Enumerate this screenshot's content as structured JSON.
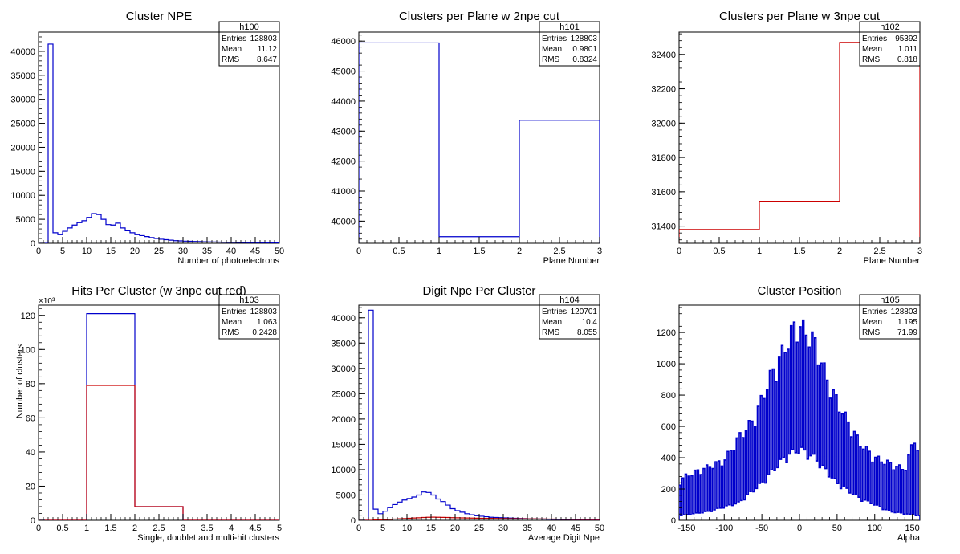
{
  "chart_data": [
    {
      "type": "histogram",
      "title": "Cluster NPE",
      "xlabel": "Number of photoelectrons",
      "ylabel": "",
      "xlim": [
        0,
        50
      ],
      "ylim": [
        0,
        44000
      ],
      "x_ticks": [
        "0",
        "5",
        "10",
        "15",
        "20",
        "25",
        "30",
        "35",
        "40",
        "45",
        "50"
      ],
      "y_ticks": [
        "0",
        "5000",
        "10000",
        "15000",
        "20000",
        "25000",
        "30000",
        "35000",
        "40000"
      ],
      "y_exponent": "",
      "stats": {
        "name": "h100",
        "entries": "128803",
        "mean": "11.12",
        "rms": "8.647"
      },
      "series": [
        {
          "color": "#0000cc",
          "bin_edges": [
            0,
            50
          ],
          "values": [
            0,
            0,
            41500,
            2200,
            1800,
            2500,
            3200,
            3800,
            4300,
            4700,
            5400,
            6200,
            6000,
            5000,
            3900,
            3800,
            4200,
            3200,
            2600,
            2200,
            1800,
            1600,
            1400,
            1200,
            1000,
            850,
            750,
            650,
            550,
            500,
            450,
            420,
            380,
            350,
            320,
            300,
            270,
            250,
            230,
            210,
            200,
            180,
            160,
            150,
            140,
            130,
            120,
            110,
            100,
            90
          ]
        }
      ]
    },
    {
      "type": "histogram",
      "title": "Clusters per Plane w 2npe cut",
      "xlabel": "Plane Number",
      "ylabel": "",
      "xlim": [
        0,
        3
      ],
      "ylim": [
        39260,
        46300
      ],
      "x_ticks": [
        "0",
        "0.5",
        "1",
        "1.5",
        "2",
        "2.5",
        "3"
      ],
      "y_ticks": [
        "40000",
        "41000",
        "42000",
        "43000",
        "44000",
        "45000",
        "46000"
      ],
      "y_exponent": "",
      "stats": {
        "name": "h101",
        "entries": "128803",
        "mean": "0.9801",
        "rms": "0.8324"
      },
      "series": [
        {
          "color": "#0000cc",
          "bin_edges": [
            0,
            3
          ],
          "values": [
            45940,
            39480,
            43360
          ]
        }
      ]
    },
    {
      "type": "histogram",
      "title": "Clusters per Plane w 3npe cut",
      "xlabel": "Plane Number",
      "ylabel": "",
      "xlim": [
        0,
        3
      ],
      "ylim": [
        31300,
        32530
      ],
      "x_ticks": [
        "0",
        "0.5",
        "1",
        "1.5",
        "2",
        "2.5",
        "3"
      ],
      "y_ticks": [
        "31400",
        "31600",
        "31800",
        "32000",
        "32200",
        "32400"
      ],
      "y_exponent": "",
      "stats": {
        "name": "h102",
        "entries": "95392",
        "mean": "1.011",
        "rms": "0.818"
      },
      "series": [
        {
          "color": "#cc0000",
          "bin_edges": [
            0,
            3
          ],
          "values": [
            31380,
            31545,
            32470
          ]
        }
      ]
    },
    {
      "type": "histogram",
      "title": "Hits Per Cluster (w 3npe cut red)",
      "xlabel": "Single, doublet and multi-hit clusters",
      "ylabel": "Number of clusters",
      "xlim": [
        0,
        5
      ],
      "ylim": [
        0,
        126
      ],
      "x_ticks": [
        "0",
        "0.5",
        "1",
        "1.5",
        "2",
        "2.5",
        "3",
        "3.5",
        "4",
        "4.5",
        "5"
      ],
      "y_ticks": [
        "0",
        "20",
        "40",
        "60",
        "80",
        "100",
        "120"
      ],
      "y_exponent": "×10³",
      "stats": {
        "name": "h103",
        "entries": "128803",
        "mean": "1.063",
        "rms": "0.2428"
      },
      "series": [
        {
          "color": "#0000cc",
          "bin_edges": [
            0,
            5
          ],
          "values": [
            0,
            121,
            8,
            0,
            0
          ]
        },
        {
          "color": "#cc0000",
          "bin_edges": [
            0,
            5
          ],
          "values": [
            0,
            79,
            8,
            0,
            0
          ]
        }
      ]
    },
    {
      "type": "histogram",
      "title": "Digit Npe Per Cluster",
      "xlabel": "Average Digit Npe",
      "ylabel": "",
      "xlim": [
        0,
        50
      ],
      "ylim": [
        0,
        42500
      ],
      "x_ticks": [
        "0",
        "5",
        "10",
        "15",
        "20",
        "25",
        "30",
        "35",
        "40",
        "45",
        "50"
      ],
      "y_ticks": [
        "0",
        "5000",
        "10000",
        "15000",
        "20000",
        "25000",
        "30000",
        "35000",
        "40000"
      ],
      "y_exponent": "",
      "stats": {
        "name": "h104",
        "entries": "120701",
        "mean": "10.4",
        "rms": "8.055"
      },
      "series": [
        {
          "color": "#0000cc",
          "bin_edges": [
            0,
            50
          ],
          "values": [
            0,
            0,
            41500,
            2200,
            1300,
            1800,
            2500,
            3100,
            3600,
            4000,
            4300,
            4600,
            5000,
            5600,
            5500,
            5000,
            4200,
            3700,
            3000,
            2300,
            1900,
            1600,
            1300,
            1100,
            900,
            800,
            700,
            600,
            560,
            520,
            480,
            440,
            400,
            370,
            340,
            300,
            280,
            260,
            240,
            220,
            200,
            190,
            180,
            170,
            160,
            150,
            140,
            130,
            120,
            110
          ]
        },
        {
          "color": "#cc0000",
          "bin_edges": [
            0,
            50
          ],
          "values": [
            0,
            0,
            0,
            60,
            100,
            150,
            200,
            250,
            300,
            350,
            400,
            450,
            500,
            550,
            600,
            620,
            600,
            580,
            550,
            520,
            500,
            480,
            460,
            440,
            420,
            400,
            390,
            380,
            360,
            350,
            340,
            330,
            320,
            310,
            300,
            290,
            280,
            270,
            260,
            250,
            240,
            230,
            220,
            210,
            200,
            190,
            180,
            170,
            160,
            150
          ]
        }
      ]
    },
    {
      "type": "histogram",
      "title": "Cluster Position",
      "xlabel": "Alpha",
      "ylabel": "",
      "xlim": [
        -160,
        160
      ],
      "ylim": [
        0,
        1375
      ],
      "x_ticks": [
        "-150",
        "-100",
        "-50",
        "0",
        "50",
        "100",
        "150"
      ],
      "x_tick_values": [
        -150,
        -100,
        -50,
        0,
        50,
        100,
        150
      ],
      "y_ticks": [
        "0",
        "200",
        "400",
        "600",
        "800",
        "1000",
        "1200"
      ],
      "y_exponent": "",
      "stats": {
        "name": "h105",
        "entries": "128803",
        "mean": "1.195",
        "rms": "71.99"
      },
      "series": [
        {
          "color": "#0000cc",
          "bin_edges": [
            -160,
            160
          ],
          "comb": "two-level bins: peak and trough rise to a maximum near alpha 0",
          "peak_envelope": [
            [
              -160,
              260
            ],
            [
              -150,
              300
            ],
            [
              -120,
              360
            ],
            [
              -100,
              400
            ],
            [
              -80,
              560
            ],
            [
              -60,
              680
            ],
            [
              -40,
              950
            ],
            [
              -20,
              1150
            ],
            [
              -5,
              1320
            ],
            [
              10,
              1260
            ],
            [
              20,
              1200
            ],
            [
              40,
              900
            ],
            [
              60,
              700
            ],
            [
              80,
              520
            ],
            [
              100,
              420
            ],
            [
              120,
              380
            ],
            [
              140,
              340
            ],
            [
              155,
              590
            ],
            [
              160,
              300
            ]
          ],
          "trough_envelope": [
            [
              -160,
              30
            ],
            [
              -120,
              60
            ],
            [
              -80,
              120
            ],
            [
              -50,
              250
            ],
            [
              -20,
              420
            ],
            [
              0,
              480
            ],
            [
              20,
              420
            ],
            [
              50,
              250
            ],
            [
              80,
              150
            ],
            [
              120,
              60
            ],
            [
              160,
              30
            ]
          ]
        }
      ]
    }
  ]
}
